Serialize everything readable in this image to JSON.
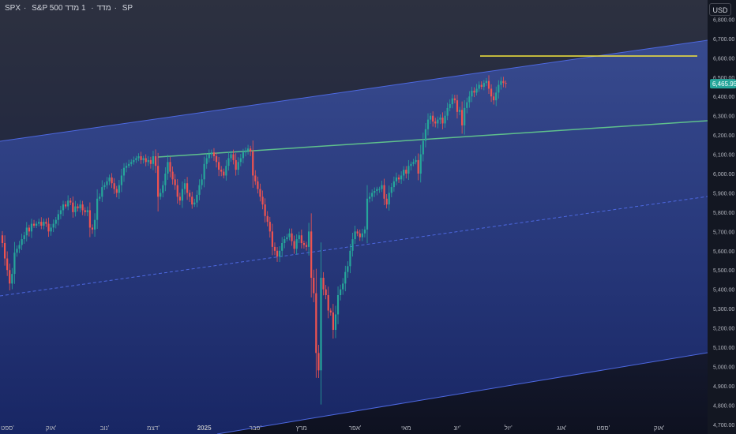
{
  "header": {
    "symbol": "SPX",
    "name": "S&P 500 מדד",
    "interval": "1 מדד",
    "exchange": "SP"
  },
  "currency": "USD",
  "colors": {
    "up": "#26a69a",
    "down": "#ef5350",
    "channel": "#4d68e0",
    "green_line": "#5fc08c",
    "yellow_line": "#f5e63c",
    "price_tag": "#26a69a"
  },
  "chart_data": {
    "type": "candlestick",
    "ylim": [
      4650,
      6900
    ],
    "y_ticks": [
      4700,
      4800,
      4900,
      5000,
      5100,
      5200,
      5300,
      5400,
      5500,
      5600,
      5700,
      5800,
      5900,
      6000,
      6100,
      6200,
      6300,
      6400,
      6500,
      6600,
      6700,
      6800
    ],
    "y_tick_labels": [
      "4,700.00",
      "4,800.00",
      "4,900.00",
      "5,000.00",
      "5,100.00",
      "5,200.00",
      "5,300.00",
      "5,400.00",
      "5,500.00",
      "5,600.00",
      "5,700.00",
      "5,800.00",
      "5,900.00",
      "6,000.00",
      "6,100.00",
      "6,200.00",
      "6,300.00",
      "6,400.00",
      "6,500.00",
      "6,600.00",
      "6,700.00",
      "6,800.00"
    ],
    "x_labels": [
      {
        "label": "ספט'",
        "bar": 0
      },
      {
        "label": "אוק'",
        "bar": 20
      },
      {
        "label": "נוב'",
        "bar": 42
      },
      {
        "label": "דצמ'",
        "bar": 62
      },
      {
        "label": "2025",
        "bar": 83
      },
      {
        "label": "פבר'",
        "bar": 104
      },
      {
        "label": "מרץ",
        "bar": 123
      },
      {
        "label": "אפר'",
        "bar": 145
      },
      {
        "label": "מאי",
        "bar": 166
      },
      {
        "label": "יונ'",
        "bar": 187
      },
      {
        "label": "יול'",
        "bar": 208
      },
      {
        "label": "אוג'",
        "bar": 230
      },
      {
        "label": "ספט'",
        "bar": 247
      },
      {
        "label": "אוק'",
        "bar": 270
      }
    ],
    "last_price": 6465.95,
    "last_price_label": "6,465.95",
    "closes": [
      5640,
      5560,
      5500,
      5430,
      5480,
      5590,
      5610,
      5630,
      5660,
      5680,
      5720,
      5700,
      5740,
      5730,
      5740,
      5750,
      5730,
      5750,
      5740,
      5700,
      5720,
      5740,
      5760,
      5790,
      5810,
      5840,
      5830,
      5860,
      5850,
      5800,
      5830,
      5820,
      5840,
      5810,
      5800,
      5810,
      5720,
      5710,
      5760,
      5870,
      5880,
      5930,
      5940,
      5960,
      5980,
      5950,
      5920,
      5900,
      5940,
      5990,
      6030,
      6040,
      6050,
      6060,
      6070,
      6080,
      6090,
      6070,
      6080,
      6060,
      6070,
      6050,
      6090,
      6040,
      5880,
      5900,
      5940,
      6000,
      6060,
      6010,
      5970,
      5940,
      5880,
      5860,
      5920,
      5950,
      5900,
      5880,
      5840,
      5850,
      5890,
      5940,
      5970,
      6050,
      6080,
      6100,
      6110,
      6090,
      6060,
      6020,
      6010,
      5990,
      6040,
      6080,
      6100,
      6070,
      6020,
      6060,
      6080,
      6110,
      6120,
      6130,
      6115,
      5990,
      5960,
      5920,
      5880,
      5840,
      5780,
      5750,
      5700,
      5620,
      5600,
      5570,
      5600,
      5640,
      5660,
      5670,
      5690,
      5650,
      5610,
      5660,
      5680,
      5640,
      5630,
      5620,
      5700,
      5460,
      5380,
      5070,
      4980,
      5460,
      5400,
      5370,
      5290,
      5280,
      5190,
      5270,
      5370,
      5400,
      5430,
      5490,
      5520,
      5600,
      5660,
      5700,
      5690,
      5670,
      5690,
      5710,
      5870,
      5880,
      5900,
      5910,
      5920,
      5920,
      5940,
      5870,
      5840,
      5900,
      5930,
      5960,
      5980,
      5970,
      5990,
      6020,
      6000,
      6040,
      6050,
      6060,
      6070,
      6000,
      6100,
      6170,
      6230,
      6280,
      6300,
      6270,
      6260,
      6280,
      6290,
      6260,
      6300,
      6340,
      6360,
      6390,
      6380,
      6320,
      6330,
      6250,
      6340,
      6370,
      6400,
      6430,
      6420,
      6440,
      6460,
      6450,
      6470,
      6480,
      6440,
      6400,
      6380,
      6420,
      6460,
      6480,
      6470,
      6466
    ]
  }
}
